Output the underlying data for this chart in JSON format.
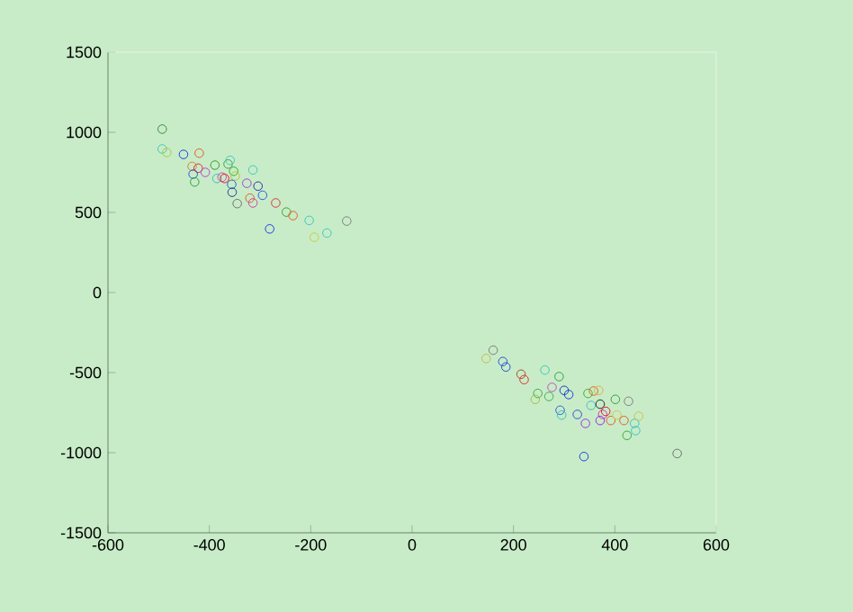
{
  "chart_data": {
    "type": "scatter",
    "marker": "circle",
    "xlim": [
      -600,
      600
    ],
    "ylim": [
      -1500,
      1500
    ],
    "xticks": [
      -600,
      -400,
      -200,
      0,
      200,
      400,
      600
    ],
    "yticks": [
      -1500,
      -1000,
      -500,
      0,
      500,
      1000,
      1500
    ],
    "series": [
      {
        "x": [
          -493,
          -493,
          -484,
          -451,
          -420,
          -434,
          -422,
          -432,
          -429,
          -408,
          -389,
          -385,
          -375,
          -370,
          -363,
          -359,
          -352,
          -349,
          -356,
          -355,
          -345,
          -326,
          -314,
          -304,
          -320,
          -314,
          -295,
          -269,
          -248,
          -235,
          -281,
          -203,
          -193,
          -168,
          -129,
          160,
          146,
          179,
          185,
          215,
          221,
          262,
          290,
          276,
          248,
          243,
          270,
          300,
          309,
          292,
          295,
          326,
          342,
          347,
          358,
          368,
          353,
          371,
          376,
          382,
          371,
          392,
          404,
          401,
          427,
          418,
          439,
          447,
          441,
          424,
          339,
          523
        ],
        "values": [
          1020,
          896,
          874,
          862,
          870,
          787,
          776,
          739,
          690,
          750,
          795,
          712,
          720,
          712,
          802,
          825,
          757,
          727,
          675,
          626,
          555,
          682,
          765,
          664,
          589,
          559,
          607,
          559,
          502,
          480,
          397,
          450,
          345,
          371,
          446,
          -360,
          -412,
          -431,
          -465,
          -510,
          -544,
          -484,
          -525,
          -592,
          -630,
          -667,
          -649,
          -611,
          -637,
          -735,
          -765,
          -761,
          -817,
          -630,
          -615,
          -611,
          -705,
          -697,
          -761,
          -742,
          -799,
          -799,
          -765,
          -667,
          -679,
          -799,
          -817,
          -772,
          -862,
          -892,
          -1024,
          -1005
        ],
        "colors": [
          "#3c8c3c",
          "#40c8b0",
          "#b0c840",
          "#2040e0",
          "#e06020",
          "#e08030",
          "#e03030",
          "#3050d0",
          "#30a040",
          "#c040e0",
          "#30a030",
          "#40c0c0",
          "#e040c0",
          "#e02020",
          "#40a040",
          "#40c8c0",
          "#30b030",
          "#c0c030",
          "#3060d0",
          "#204090",
          "#707070",
          "#a040d0",
          "#40c8c0",
          "#3030a0",
          "#e06030",
          "#d040a0",
          "#3060e0",
          "#e03040",
          "#40a030",
          "#e06020",
          "#2040e0",
          "#40c8c0",
          "#c0d040",
          "#40c8c0",
          "#808080",
          "#808080",
          "#c0c040",
          "#3050d0",
          "#2050d0",
          "#a05030",
          "#e03030",
          "#40c8b0",
          "#30a040",
          "#c050c0",
          "#40b040",
          "#a0c040",
          "#40b050",
          "#2040c0",
          "#2040d0",
          "#3060e0",
          "#40c0c0",
          "#3050d0",
          "#a030e0",
          "#40b030",
          "#e06020",
          "#e0b040",
          "#40c0c0",
          "#303030",
          "#e030c0",
          "#e02030",
          "#9030e0",
          "#e06030",
          "#e0c040",
          "#40a040",
          "#808080",
          "#e06030",
          "#40c0c0",
          "#d0c040",
          "#40c0c0",
          "#30b040",
          "#2040e0",
          "#707070"
        ]
      }
    ]
  }
}
